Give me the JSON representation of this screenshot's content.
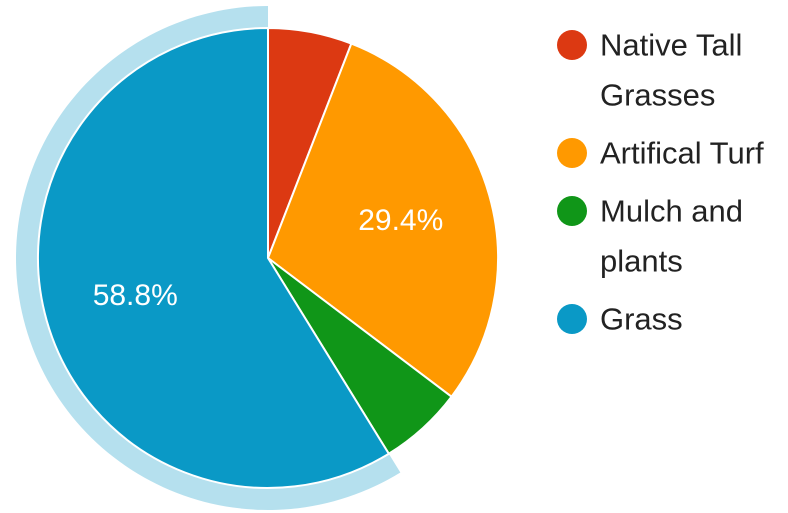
{
  "chart_data": {
    "type": "pie",
    "title": "",
    "legend_position": "right",
    "highlighted_slice": "Grass",
    "slices": [
      {
        "name": "Native Tall Grasses",
        "value": 5.9,
        "label": "",
        "color": "#DC3912",
        "legend_lines": [
          "Native Tall",
          "Grasses"
        ]
      },
      {
        "name": "Artifical Turf",
        "value": 29.4,
        "label": "29.4%",
        "color": "#FF9900",
        "legend_lines": [
          "Artifical Turf"
        ]
      },
      {
        "name": "Mulch and plants",
        "value": 5.9,
        "label": "",
        "color": "#109618",
        "legend_lines": [
          "Mulch and",
          "plants"
        ]
      },
      {
        "name": "Grass",
        "value": 58.8,
        "label": "58.8%",
        "color": "#0A99C6",
        "legend_lines": [
          "Grass"
        ]
      }
    ]
  }
}
